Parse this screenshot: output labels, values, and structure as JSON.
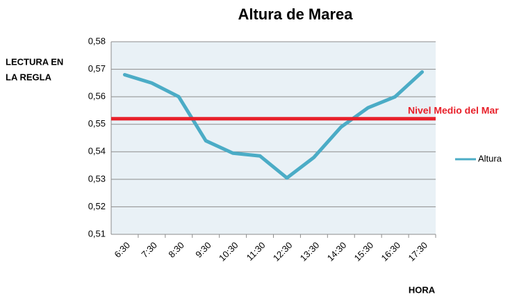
{
  "chart_data": {
    "type": "line",
    "title": "Altura de Marea",
    "ylabel": [
      "LECTURA EN",
      "LA REGLA"
    ],
    "xlabel": "HORA",
    "categories": [
      "6:30",
      "7:30",
      "8:30",
      "9:30",
      "10:30",
      "11:30",
      "12:30",
      "13:30",
      "14:30",
      "15:30",
      "16:30",
      "17:30"
    ],
    "series": [
      {
        "name": "Altura",
        "color": "#4bacc6",
        "values": [
          0.568,
          0.565,
          0.56,
          0.544,
          0.5395,
          0.5385,
          0.5305,
          0.538,
          0.549,
          0.556,
          0.56,
          0.569
        ]
      }
    ],
    "reference_line": {
      "label": "Nivel Medio del Mar",
      "value": 0.552,
      "color": "#e8202a"
    },
    "ylim": [
      0.51,
      0.58
    ],
    "yticks": [
      {
        "value": 0.51,
        "label": "0,51"
      },
      {
        "value": 0.52,
        "label": "0,52"
      },
      {
        "value": 0.53,
        "label": "0,53"
      },
      {
        "value": 0.54,
        "label": "0,54"
      },
      {
        "value": 0.55,
        "label": "0,55"
      },
      {
        "value": 0.56,
        "label": "0,56"
      },
      {
        "value": 0.57,
        "label": "0,57"
      },
      {
        "value": 0.58,
        "label": "0,58"
      }
    ],
    "grid": true,
    "legend": "right"
  }
}
